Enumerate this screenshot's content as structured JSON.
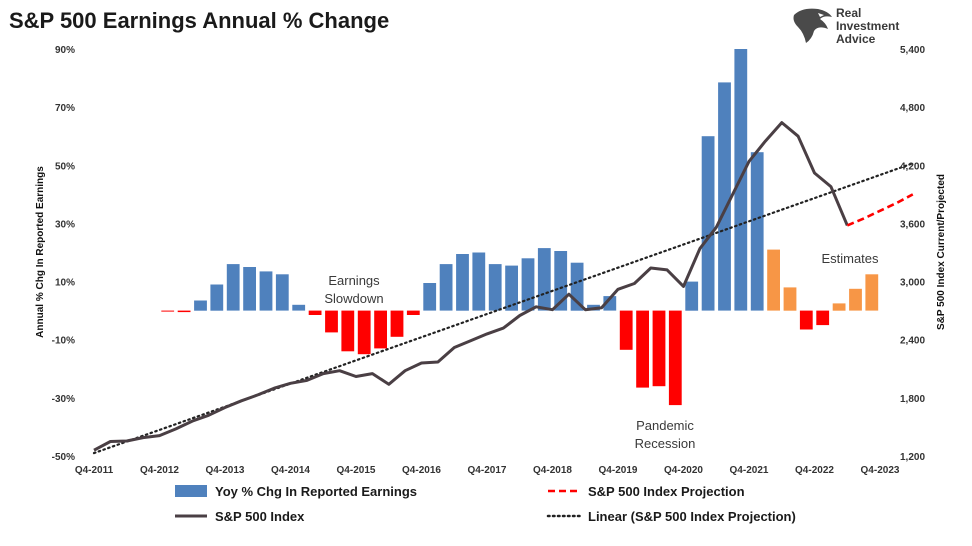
{
  "title": "S&P 500 Earnings Annual % Change",
  "logo": {
    "icon": "eagle-head-icon",
    "line1": "Real",
    "line2": "Investment",
    "line3": "Advice"
  },
  "chart_data": {
    "type": "bar",
    "title": "S&P 500 Earnings Annual % Change",
    "ylabel_left": "Annual % Chg In Reported Earnings",
    "ylabel_right": "S&P 500 Index Current/Projected",
    "y_left_range": [
      -50,
      90
    ],
    "y_right_range": [
      1200,
      5400
    ],
    "y_left_ticks": [
      "90%",
      "70%",
      "50%",
      "30%",
      "10%",
      "-10%",
      "-30%",
      "-50%"
    ],
    "y_right_ticks": [
      "5,400",
      "4,800",
      "4,200",
      "3,600",
      "3,000",
      "2,400",
      "1,800",
      "1,200"
    ],
    "x_ticks": [
      "Q4-2011",
      "Q4-2012",
      "Q4-2013",
      "Q4-2014",
      "Q4-2015",
      "Q4-2016",
      "Q4-2017",
      "Q4-2018",
      "Q4-2019",
      "Q4-2020",
      "Q4-2021",
      "Q4-2022",
      "Q4-2023"
    ],
    "periods": 49,
    "bars": [
      null,
      null,
      null,
      null,
      -0.3,
      -0.5,
      3.5,
      9,
      16,
      15,
      13.5,
      12.5,
      2,
      -1.5,
      -7.5,
      -14,
      -15,
      -13,
      -9,
      -1.5,
      9.5,
      16,
      19.5,
      20,
      16,
      15.5,
      18,
      21.5,
      20.5,
      16.5,
      2,
      5,
      -13.5,
      -26.5,
      -26,
      -32.5,
      10,
      60,
      78.5,
      90,
      54.5,
      21,
      8,
      -6.5,
      -5,
      2.5,
      7.5,
      12.5,
      null
    ],
    "bar_colors": {
      "positive": "#4f81bd",
      "negative": "#ff0000",
      "estimate": "#f79646"
    },
    "estimate_start_index": 41,
    "sp500": [
      1260,
      1350,
      1355,
      1390,
      1410,
      1480,
      1560,
      1620,
      1700,
      1770,
      1830,
      1900,
      1950,
      1980,
      2050,
      2080,
      2020,
      2050,
      1940,
      2080,
      2160,
      2170,
      2320,
      2390,
      2460,
      2520,
      2650,
      2740,
      2710,
      2870,
      2710,
      2730,
      2920,
      2980,
      3140,
      3120,
      2950,
      3340,
      3560,
      3900,
      4240,
      4450,
      4640,
      4500,
      4120,
      3980,
      3580
    ],
    "projection": [
      [
        46,
        3580
      ],
      [
        47,
        3650
      ],
      [
        48,
        3730
      ],
      [
        49,
        3810
      ],
      [
        50,
        3900
      ]
    ],
    "linear_trend": [
      [
        0,
        1230
      ],
      [
        50,
        4220
      ]
    ],
    "annotations": [
      {
        "text": [
          "Earnings",
          "Slowdown"
        ]
      },
      {
        "text": [
          "Pandemic",
          "Recession"
        ]
      },
      {
        "text": [
          "Estimates"
        ]
      }
    ],
    "legend": [
      {
        "label": "Yoy % Chg In Reported Earnings",
        "style": "bar",
        "color": "#4f81bd"
      },
      {
        "label": "S&P 500 Index Projection",
        "style": "dashed",
        "color": "#ff0000"
      },
      {
        "label": "S&P 500 Index",
        "style": "solid",
        "color": "#4a3f44"
      },
      {
        "label": "Linear (S&P 500 Index Projection)",
        "style": "dotted",
        "color": "#222222"
      }
    ]
  }
}
